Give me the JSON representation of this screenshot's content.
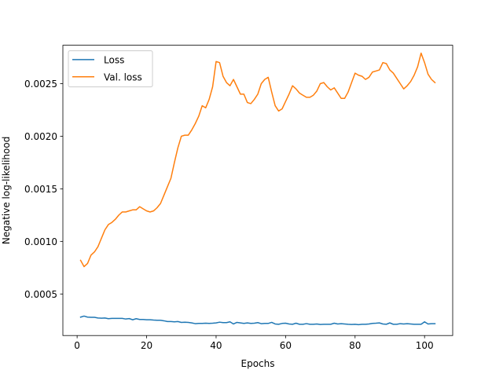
{
  "chart_data": {
    "type": "line",
    "title": "",
    "xlabel": "Epochs",
    "ylabel": "Negative log-likelihood",
    "xlim": [
      -4.1,
      108.1
    ],
    "ylim": [
      0.000105,
      0.002865
    ],
    "xticks": [
      0,
      20,
      40,
      60,
      80,
      100
    ],
    "xtick_labels": [
      "0",
      "20",
      "40",
      "60",
      "80",
      "100"
    ],
    "yticks": [
      0.0005,
      0.001,
      0.0015,
      0.002,
      0.0025
    ],
    "ytick_labels": [
      "0.0005",
      "0.0010",
      "0.0015",
      "0.0020",
      "0.0025"
    ],
    "grid": false,
    "legend_position": "upper-left",
    "series": [
      {
        "name": "Loss",
        "color": "#1f77b4",
        "x": [
          1,
          2,
          3,
          4,
          5,
          6,
          7,
          8,
          9,
          10,
          11,
          12,
          13,
          14,
          15,
          16,
          17,
          18,
          19,
          20,
          21,
          22,
          23,
          24,
          25,
          26,
          27,
          28,
          29,
          30,
          31,
          32,
          33,
          34,
          35,
          36,
          37,
          38,
          39,
          40,
          41,
          42,
          43,
          44,
          45,
          46,
          47,
          48,
          49,
          50,
          51,
          52,
          53,
          54,
          55,
          56,
          57,
          58,
          59,
          60,
          61,
          62,
          63,
          64,
          65,
          66,
          67,
          68,
          69,
          70,
          71,
          72,
          73,
          74,
          75,
          76,
          77,
          78,
          79,
          80,
          81,
          82,
          83,
          84,
          85,
          86,
          87,
          88,
          89,
          90,
          91,
          92,
          93,
          94,
          95,
          96,
          97,
          98,
          99,
          100,
          101,
          102,
          103
        ],
        "values": [
          0.00028,
          0.00029,
          0.00028,
          0.000278,
          0.000278,
          0.000272,
          0.00027,
          0.000272,
          0.000265,
          0.000268,
          0.000268,
          0.000268,
          0.000268,
          0.000262,
          0.000266,
          0.000255,
          0.000265,
          0.000258,
          0.000258,
          0.000255,
          0.000255,
          0.000252,
          0.00025,
          0.00025,
          0.000245,
          0.000238,
          0.000238,
          0.000235,
          0.000238,
          0.00023,
          0.000232,
          0.00023,
          0.000225,
          0.000218,
          0.00022,
          0.00022,
          0.000222,
          0.00022,
          0.000222,
          0.000225,
          0.000232,
          0.000228,
          0.000228,
          0.000235,
          0.000215,
          0.00023,
          0.000225,
          0.00022,
          0.000225,
          0.00022,
          0.000222,
          0.000228,
          0.000218,
          0.00022,
          0.00022,
          0.00023,
          0.000215,
          0.000212,
          0.00022,
          0.000222,
          0.000215,
          0.000212,
          0.000222,
          0.000212,
          0.000212,
          0.000218,
          0.000212,
          0.000212,
          0.000215,
          0.00021,
          0.000212,
          0.000212,
          0.000212,
          0.000222,
          0.000215,
          0.000218,
          0.000215,
          0.000212,
          0.00021,
          0.000212,
          0.000208,
          0.000212,
          0.000212,
          0.000215,
          0.00022,
          0.000222,
          0.000225,
          0.000215,
          0.000212,
          0.000225,
          0.000212,
          0.000212,
          0.000218,
          0.000215,
          0.000218,
          0.000215,
          0.000212,
          0.000212,
          0.000212,
          0.000235,
          0.000215,
          0.000218,
          0.000218
        ]
      },
      {
        "name": "Val. loss",
        "color": "#ff7f0e",
        "x": [
          1,
          2,
          3,
          4,
          5,
          6,
          7,
          8,
          9,
          10,
          11,
          12,
          13,
          14,
          15,
          16,
          17,
          18,
          19,
          20,
          21,
          22,
          23,
          24,
          25,
          26,
          27,
          28,
          29,
          30,
          31,
          32,
          33,
          34,
          35,
          36,
          37,
          38,
          39,
          40,
          41,
          42,
          43,
          44,
          45,
          46,
          47,
          48,
          49,
          50,
          51,
          52,
          53,
          54,
          55,
          56,
          57,
          58,
          59,
          60,
          61,
          62,
          63,
          64,
          65,
          66,
          67,
          68,
          69,
          70,
          71,
          72,
          73,
          74,
          75,
          76,
          77,
          78,
          79,
          80,
          81,
          82,
          83,
          84,
          85,
          86,
          87,
          88,
          89,
          90,
          91,
          92,
          93,
          94,
          95,
          96,
          97,
          98,
          99,
          100,
          101,
          102,
          103
        ],
        "values": [
          0.00082,
          0.00076,
          0.00079,
          0.00087,
          0.0009,
          0.00095,
          0.00103,
          0.00111,
          0.00116,
          0.00118,
          0.00121,
          0.00125,
          0.00128,
          0.00128,
          0.00129,
          0.0013,
          0.0013,
          0.00133,
          0.00131,
          0.00129,
          0.00128,
          0.00129,
          0.00132,
          0.00136,
          0.00144,
          0.00152,
          0.0016,
          0.00175,
          0.00189,
          0.002,
          0.00201,
          0.00201,
          0.00206,
          0.00212,
          0.00219,
          0.00229,
          0.00227,
          0.00235,
          0.00247,
          0.00271,
          0.0027,
          0.00257,
          0.00251,
          0.00248,
          0.00254,
          0.00247,
          0.0024,
          0.0024,
          0.00232,
          0.00231,
          0.00235,
          0.0024,
          0.0025,
          0.00254,
          0.00256,
          0.00242,
          0.00229,
          0.00224,
          0.00226,
          0.00233,
          0.0024,
          0.00248,
          0.00245,
          0.00241,
          0.00239,
          0.00237,
          0.00237,
          0.00239,
          0.00243,
          0.0025,
          0.00251,
          0.00247,
          0.00244,
          0.00246,
          0.00241,
          0.00236,
          0.00236,
          0.00242,
          0.00251,
          0.0026,
          0.00258,
          0.00257,
          0.00254,
          0.00256,
          0.00261,
          0.00262,
          0.00263,
          0.0027,
          0.00269,
          0.00263,
          0.0026,
          0.00255,
          0.0025,
          0.00245,
          0.00248,
          0.00252,
          0.00258,
          0.00266,
          0.00279,
          0.0027,
          0.00259,
          0.00254,
          0.00251
        ]
      }
    ]
  }
}
